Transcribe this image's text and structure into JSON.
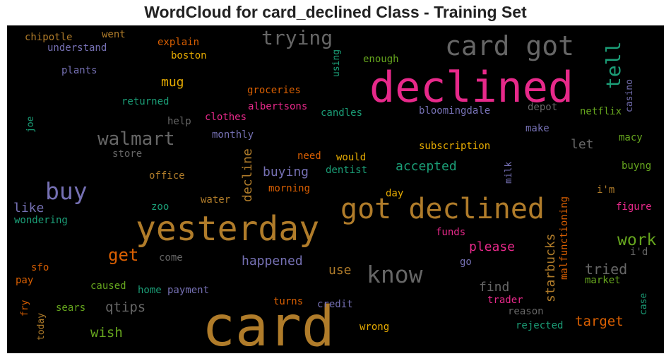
{
  "chart_data": {
    "type": "wordcloud",
    "title": "WordCloud for card_declined Class - Training Set",
    "words": [
      {
        "text": "card",
        "weight": 1.0,
        "color": "#b07c2a"
      },
      {
        "text": "declined",
        "weight": 0.8,
        "color": "#e7298a"
      },
      {
        "text": "yesterday",
        "weight": 0.68,
        "color": "#b07c2a"
      },
      {
        "text": "got declined",
        "weight": 0.6,
        "color": "#b07c2a"
      },
      {
        "text": "card got",
        "weight": 0.57,
        "color": "#666666"
      },
      {
        "text": "know",
        "weight": 0.5,
        "color": "#666666"
      },
      {
        "text": "buy",
        "weight": 0.45,
        "color": "#7570b3"
      },
      {
        "text": "trying",
        "weight": 0.44,
        "color": "#666666"
      },
      {
        "text": "tell",
        "weight": 0.43,
        "color": "#1b9e77"
      },
      {
        "text": "walmart",
        "weight": 0.37,
        "color": "#666666"
      },
      {
        "text": "get",
        "weight": 0.34,
        "color": "#d95f02"
      },
      {
        "text": "work",
        "weight": 0.33,
        "color": "#66a61e"
      },
      {
        "text": "tried",
        "weight": 0.3,
        "color": "#666666"
      },
      {
        "text": "starbucks",
        "weight": 0.28,
        "color": "#b07c2a"
      },
      {
        "text": "decline",
        "weight": 0.28,
        "color": "#b07c2a"
      },
      {
        "text": "target",
        "weight": 0.27,
        "color": "#d95f02"
      },
      {
        "text": "qtips",
        "weight": 0.27,
        "color": "#666666"
      },
      {
        "text": "wish",
        "weight": 0.27,
        "color": "#66a61e"
      },
      {
        "text": "mug",
        "weight": 0.25,
        "color": "#e6ab02"
      },
      {
        "text": "accepted",
        "weight": 0.25,
        "color": "#1b9e77"
      },
      {
        "text": "buying",
        "weight": 0.25,
        "color": "#7570b3"
      },
      {
        "text": "happened",
        "weight": 0.25,
        "color": "#7570b3"
      },
      {
        "text": "please",
        "weight": 0.24,
        "color": "#e7298a"
      },
      {
        "text": "let",
        "weight": 0.24,
        "color": "#666666"
      },
      {
        "text": "find",
        "weight": 0.23,
        "color": "#666666"
      },
      {
        "text": "like",
        "weight": 0.23,
        "color": "#7570b3"
      },
      {
        "text": "use",
        "weight": 0.23,
        "color": "#b07c2a"
      },
      {
        "text": "malfunctioning",
        "weight": 0.19,
        "color": "#d95f02"
      },
      {
        "text": "chipotle",
        "weight": 0.19,
        "color": "#b07c2a"
      },
      {
        "text": "went",
        "weight": 0.19,
        "color": "#b07c2a"
      },
      {
        "text": "explain",
        "weight": 0.19,
        "color": "#d95f02"
      },
      {
        "text": "understand",
        "weight": 0.19,
        "color": "#7570b3"
      },
      {
        "text": "boston",
        "weight": 0.19,
        "color": "#e6ab02"
      },
      {
        "text": "plants",
        "weight": 0.19,
        "color": "#7570b3"
      },
      {
        "text": "using",
        "weight": 0.17,
        "color": "#1b9e77"
      },
      {
        "text": "enough",
        "weight": 0.19,
        "color": "#66a61e"
      },
      {
        "text": "groceries",
        "weight": 0.19,
        "color": "#d95f02"
      },
      {
        "text": "returned",
        "weight": 0.19,
        "color": "#1b9e77"
      },
      {
        "text": "albertsons",
        "weight": 0.19,
        "color": "#e7298a"
      },
      {
        "text": "candles",
        "weight": 0.19,
        "color": "#1b9e77"
      },
      {
        "text": "bloomingdale",
        "weight": 0.19,
        "color": "#7570b3"
      },
      {
        "text": "depot",
        "weight": 0.19,
        "color": "#666666"
      },
      {
        "text": "netflix",
        "weight": 0.19,
        "color": "#66a61e"
      },
      {
        "text": "casino",
        "weight": 0.17,
        "color": "#7570b3"
      },
      {
        "text": "joe",
        "weight": 0.17,
        "color": "#1b9e77"
      },
      {
        "text": "help",
        "weight": 0.19,
        "color": "#666666"
      },
      {
        "text": "clothes",
        "weight": 0.19,
        "color": "#e7298a"
      },
      {
        "text": "monthly",
        "weight": 0.19,
        "color": "#7570b3"
      },
      {
        "text": "make",
        "weight": 0.19,
        "color": "#7570b3"
      },
      {
        "text": "macy",
        "weight": 0.19,
        "color": "#66a61e"
      },
      {
        "text": "store",
        "weight": 0.19,
        "color": "#666666"
      },
      {
        "text": "need",
        "weight": 0.19,
        "color": "#d95f02"
      },
      {
        "text": "would",
        "weight": 0.19,
        "color": "#e6ab02"
      },
      {
        "text": "subscription",
        "weight": 0.19,
        "color": "#e6ab02"
      },
      {
        "text": "buyng",
        "weight": 0.19,
        "color": "#66a61e"
      },
      {
        "text": "office",
        "weight": 0.19,
        "color": "#b07c2a"
      },
      {
        "text": "dentist",
        "weight": 0.19,
        "color": "#1b9e77"
      },
      {
        "text": "milk",
        "weight": 0.17,
        "color": "#7570b3"
      },
      {
        "text": "morning",
        "weight": 0.19,
        "color": "#d95f02"
      },
      {
        "text": "i'm",
        "weight": 0.19,
        "color": "#b07c2a"
      },
      {
        "text": "water",
        "weight": 0.19,
        "color": "#b07c2a"
      },
      {
        "text": "day",
        "weight": 0.19,
        "color": "#e6ab02"
      },
      {
        "text": "zoo",
        "weight": 0.19,
        "color": "#1b9e77"
      },
      {
        "text": "figure",
        "weight": 0.19,
        "color": "#e7298a"
      },
      {
        "text": "wondering",
        "weight": 0.19,
        "color": "#1b9e77"
      },
      {
        "text": "funds",
        "weight": 0.19,
        "color": "#e7298a"
      },
      {
        "text": "i'd",
        "weight": 0.19,
        "color": "#666666"
      },
      {
        "text": "come",
        "weight": 0.19,
        "color": "#666666"
      },
      {
        "text": "sfo",
        "weight": 0.19,
        "color": "#d95f02"
      },
      {
        "text": "go",
        "weight": 0.19,
        "color": "#7570b3"
      },
      {
        "text": "pay",
        "weight": 0.19,
        "color": "#d95f02"
      },
      {
        "text": "market",
        "weight": 0.19,
        "color": "#66a61e"
      },
      {
        "text": "caused",
        "weight": 0.19,
        "color": "#66a61e"
      },
      {
        "text": "home",
        "weight": 0.19,
        "color": "#1b9e77"
      },
      {
        "text": "payment",
        "weight": 0.19,
        "color": "#7570b3"
      },
      {
        "text": "trader",
        "weight": 0.19,
        "color": "#e7298a"
      },
      {
        "text": "case",
        "weight": 0.17,
        "color": "#1b9e77"
      },
      {
        "text": "fry",
        "weight": 0.17,
        "color": "#d95f02"
      },
      {
        "text": "turns",
        "weight": 0.19,
        "color": "#d95f02"
      },
      {
        "text": "credit",
        "weight": 0.19,
        "color": "#7570b3"
      },
      {
        "text": "reason",
        "weight": 0.19,
        "color": "#666666"
      },
      {
        "text": "today",
        "weight": 0.17,
        "color": "#b07c2a"
      },
      {
        "text": "sears",
        "weight": 0.19,
        "color": "#66a61e"
      },
      {
        "text": "wrong",
        "weight": 0.19,
        "color": "#e6ab02"
      },
      {
        "text": "rejected",
        "weight": 0.19,
        "color": "#1b9e77"
      }
    ]
  }
}
